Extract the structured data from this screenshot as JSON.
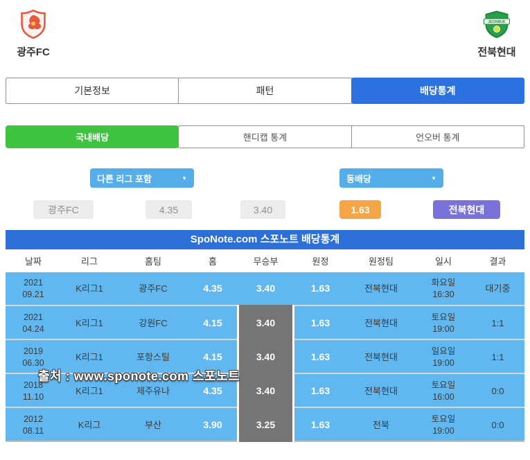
{
  "teams": {
    "home": {
      "name": "광주FC"
    },
    "away": {
      "name": "전북현대",
      "crest_text": "JEONBUK"
    }
  },
  "tabs_main": [
    {
      "label": "기본정보",
      "active": false
    },
    {
      "label": "패턴",
      "active": false
    },
    {
      "label": "배당통계",
      "active": true
    }
  ],
  "tabs_sub": [
    {
      "label": "국내배당",
      "active": true
    },
    {
      "label": "핸디캡 통계",
      "active": false
    },
    {
      "label": "언오버 통계",
      "active": false
    }
  ],
  "filters": {
    "league_filter": "다른 리그 포함",
    "odds_filter": "동배당",
    "arrow_icon": "▼"
  },
  "current_odds": {
    "home_team": "광주FC",
    "home": "4.35",
    "draw": "3.40",
    "away": "1.63",
    "away_team": "전북현대"
  },
  "table": {
    "title": "SpoNote.com 스포노트 배당통계",
    "columns": [
      "날짜",
      "리그",
      "홈팀",
      "홈",
      "무승부",
      "원정",
      "원정팀",
      "일시",
      "결과"
    ],
    "rows": [
      {
        "year": "2021",
        "date": "09.21",
        "league": "K리그1",
        "home_team": "광주FC",
        "home": "4.35",
        "draw": "3.40",
        "away": "1.63",
        "away_team": "전북현대",
        "day": "화요일",
        "time": "16:30",
        "result": "대기중",
        "draw_highlight": false
      },
      {
        "year": "2021",
        "date": "04.24",
        "league": "K리그1",
        "home_team": "강원FC",
        "home": "4.15",
        "draw": "3.40",
        "away": "1.63",
        "away_team": "전북현대",
        "day": "토요일",
        "time": "19:00",
        "result": "1:1",
        "draw_highlight": true
      },
      {
        "year": "2019",
        "date": "06.30",
        "league": "K리그1",
        "home_team": "포항스틸",
        "home": "4.15",
        "draw": "3.40",
        "away": "1.63",
        "away_team": "전북현대",
        "day": "일요일",
        "time": "19:00",
        "result": "1:1",
        "draw_highlight": true
      },
      {
        "year": "2018",
        "date": "11.10",
        "league": "K리그1",
        "home_team": "제주유나",
        "home": "4.35",
        "draw": "3.40",
        "away": "1.63",
        "away_team": "전북현대",
        "day": "토요일",
        "time": "16:00",
        "result": "0:0",
        "draw_highlight": true
      },
      {
        "year": "2012",
        "date": "08.11",
        "league": "K리그",
        "home_team": "부산",
        "home": "3.90",
        "draw": "3.25",
        "away": "1.63",
        "away_team": "전북",
        "day": "토요일",
        "time": "19:00",
        "result": "0:0",
        "draw_highlight": true
      }
    ]
  },
  "watermark": "출처 : www.sponote.com 스포노트",
  "colors": {
    "active_tab_blue": "#2b72e0",
    "active_tab_green": "#3ec43e",
    "dropdown_blue": "#55aeea",
    "odds_orange": "#f4a546",
    "odds_purple": "#7a72da",
    "table_title_blue": "#2c6fd9",
    "row_blue": "#61b8f1",
    "highlight_gray": "#757575",
    "neutral_box_gray": "#ececec"
  }
}
